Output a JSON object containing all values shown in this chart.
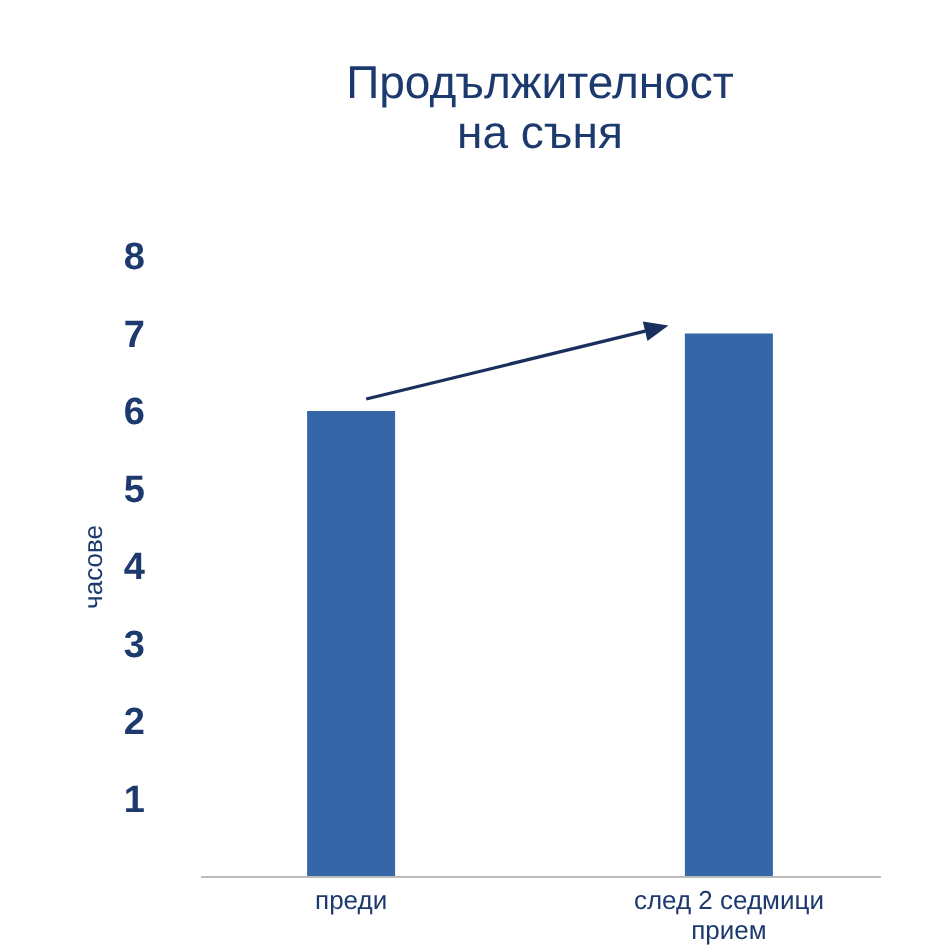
{
  "chart_data": {
    "type": "bar",
    "title": "Продължителност\nна съня",
    "ylabel": "часове",
    "categories": [
      "преди",
      "след 2 седмици прием"
    ],
    "values": [
      6,
      7
    ],
    "color": "#3566a8",
    "ylim": [
      0,
      8
    ],
    "yticks": [
      1,
      2,
      3,
      4,
      5,
      6,
      7,
      8
    ],
    "grid": false
  }
}
